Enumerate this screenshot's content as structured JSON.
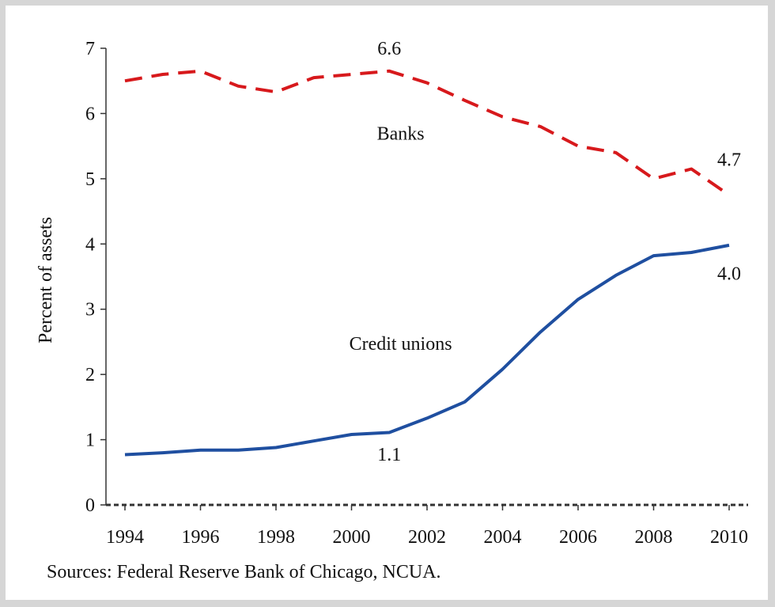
{
  "chart_data": {
    "type": "line",
    "title": "",
    "xlabel": "",
    "ylabel": "Percent of assets",
    "ylim": [
      0,
      7
    ],
    "xlim": [
      1994,
      2010
    ],
    "yticks": [
      0,
      1,
      2,
      3,
      4,
      5,
      6,
      7
    ],
    "xticks": [
      1994,
      1996,
      1998,
      2000,
      2002,
      2004,
      2006,
      2008,
      2010
    ],
    "grid": false,
    "legend": "none",
    "series": [
      {
        "name": "Banks",
        "color": "#d7191c",
        "style": "dashed",
        "x": [
          1994,
          1995,
          1996,
          1997,
          1998,
          1999,
          2000,
          2001,
          2002,
          2003,
          2004,
          2005,
          2006,
          2007,
          2008,
          2009,
          2010
        ],
        "y": [
          6.5,
          6.6,
          6.65,
          6.42,
          6.33,
          6.55,
          6.6,
          6.65,
          6.47,
          6.2,
          5.95,
          5.8,
          5.5,
          5.4,
          5.0,
          5.15,
          4.75
        ]
      },
      {
        "name": "Credit unions",
        "color": "#1f4fa0",
        "style": "solid",
        "x": [
          1994,
          1995,
          1996,
          1997,
          1998,
          1999,
          2000,
          2001,
          2002,
          2003,
          2004,
          2005,
          2006,
          2007,
          2008,
          2009,
          2010
        ],
        "y": [
          0.77,
          0.8,
          0.84,
          0.84,
          0.88,
          0.98,
          1.08,
          1.11,
          1.33,
          1.58,
          2.08,
          2.65,
          3.15,
          3.52,
          3.82,
          3.87,
          3.98
        ]
      }
    ],
    "annotations": [
      {
        "text": "6.6",
        "x": 2001,
        "y": 6.9,
        "anchor": "middle"
      },
      {
        "text": "4.7",
        "x": 2010,
        "y": 5.2,
        "anchor": "middle"
      },
      {
        "text": "4.0",
        "x": 2010,
        "y": 3.45,
        "anchor": "middle"
      },
      {
        "text": "1.1",
        "x": 2001,
        "y": 0.68,
        "anchor": "middle"
      },
      {
        "text": "Banks",
        "x": 2001.3,
        "y": 5.6,
        "anchor": "middle"
      },
      {
        "text": "Credit unions",
        "x": 2001.3,
        "y": 2.38,
        "anchor": "middle"
      }
    ]
  },
  "source_note": "Sources: Federal Reserve Bank of Chicago, NCUA."
}
